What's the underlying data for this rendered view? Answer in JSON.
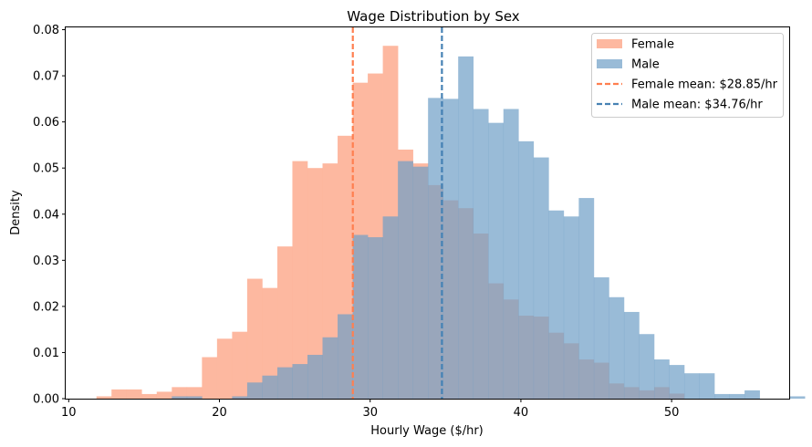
{
  "chart_data": {
    "type": "histogram",
    "title": "Wage Distribution by Sex",
    "xlabel": "Hourly Wage ($/hr)",
    "ylabel": "Density",
    "xlim": [
      9.8,
      57.8
    ],
    "ylim": [
      0,
      0.0805
    ],
    "xticks": [
      10,
      20,
      30,
      40,
      50
    ],
    "yticks": [
      0.0,
      0.01,
      0.02,
      0.03,
      0.04,
      0.05,
      0.06,
      0.07,
      0.08
    ],
    "ytick_labels": [
      "0.00",
      "0.01",
      "0.02",
      "0.03",
      "0.04",
      "0.05",
      "0.06",
      "0.07",
      "0.08"
    ],
    "grid": false,
    "legend_position": "top-right",
    "series": [
      {
        "name": "Female",
        "color": "#fdb49b",
        "bin_start": 11.84,
        "bin_width": 1.0,
        "values": [
          0.0005,
          0.002,
          0.002,
          0.001,
          0.0015,
          0.0025,
          0.0025,
          0.009,
          0.013,
          0.0145,
          0.026,
          0.024,
          0.033,
          0.0515,
          0.05,
          0.051,
          0.057,
          0.0685,
          0.0705,
          0.0765,
          0.054,
          0.051,
          0.0463,
          0.043,
          0.0413,
          0.0358,
          0.025,
          0.0215,
          0.018,
          0.0178,
          0.0143,
          0.012,
          0.0085,
          0.0078,
          0.0033,
          0.0025,
          0.0018,
          0.0025,
          0.0011
        ]
      },
      {
        "name": "Male",
        "color": "#6d9ec6",
        "bin_start": 16.84,
        "bin_width": 1.0,
        "values": [
          0.0005,
          0.0005,
          0.0,
          0.0,
          0.0005,
          0.0035,
          0.005,
          0.0068,
          0.0075,
          0.0095,
          0.0133,
          0.0183,
          0.0355,
          0.035,
          0.0395,
          0.0515,
          0.0503,
          0.0652,
          0.065,
          0.0742,
          0.0628,
          0.0598,
          0.0628,
          0.0558,
          0.0523,
          0.0408,
          0.0395,
          0.0435,
          0.0263,
          0.022,
          0.0188,
          0.014,
          0.0085,
          0.0073,
          0.0055,
          0.0055,
          0.001,
          0.001,
          0.0018,
          0.0,
          0.0,
          0.0005,
          0.0,
          0.0,
          0.0005
        ]
      }
    ],
    "reference_lines": [
      {
        "name": "Female mean: $28.85/hr",
        "x": 28.85,
        "color": "#ff7f50",
        "style": "dashed"
      },
      {
        "name": "Male mean: $34.76/hr",
        "x": 34.76,
        "color": "#4682b4",
        "style": "dashed"
      }
    ]
  }
}
